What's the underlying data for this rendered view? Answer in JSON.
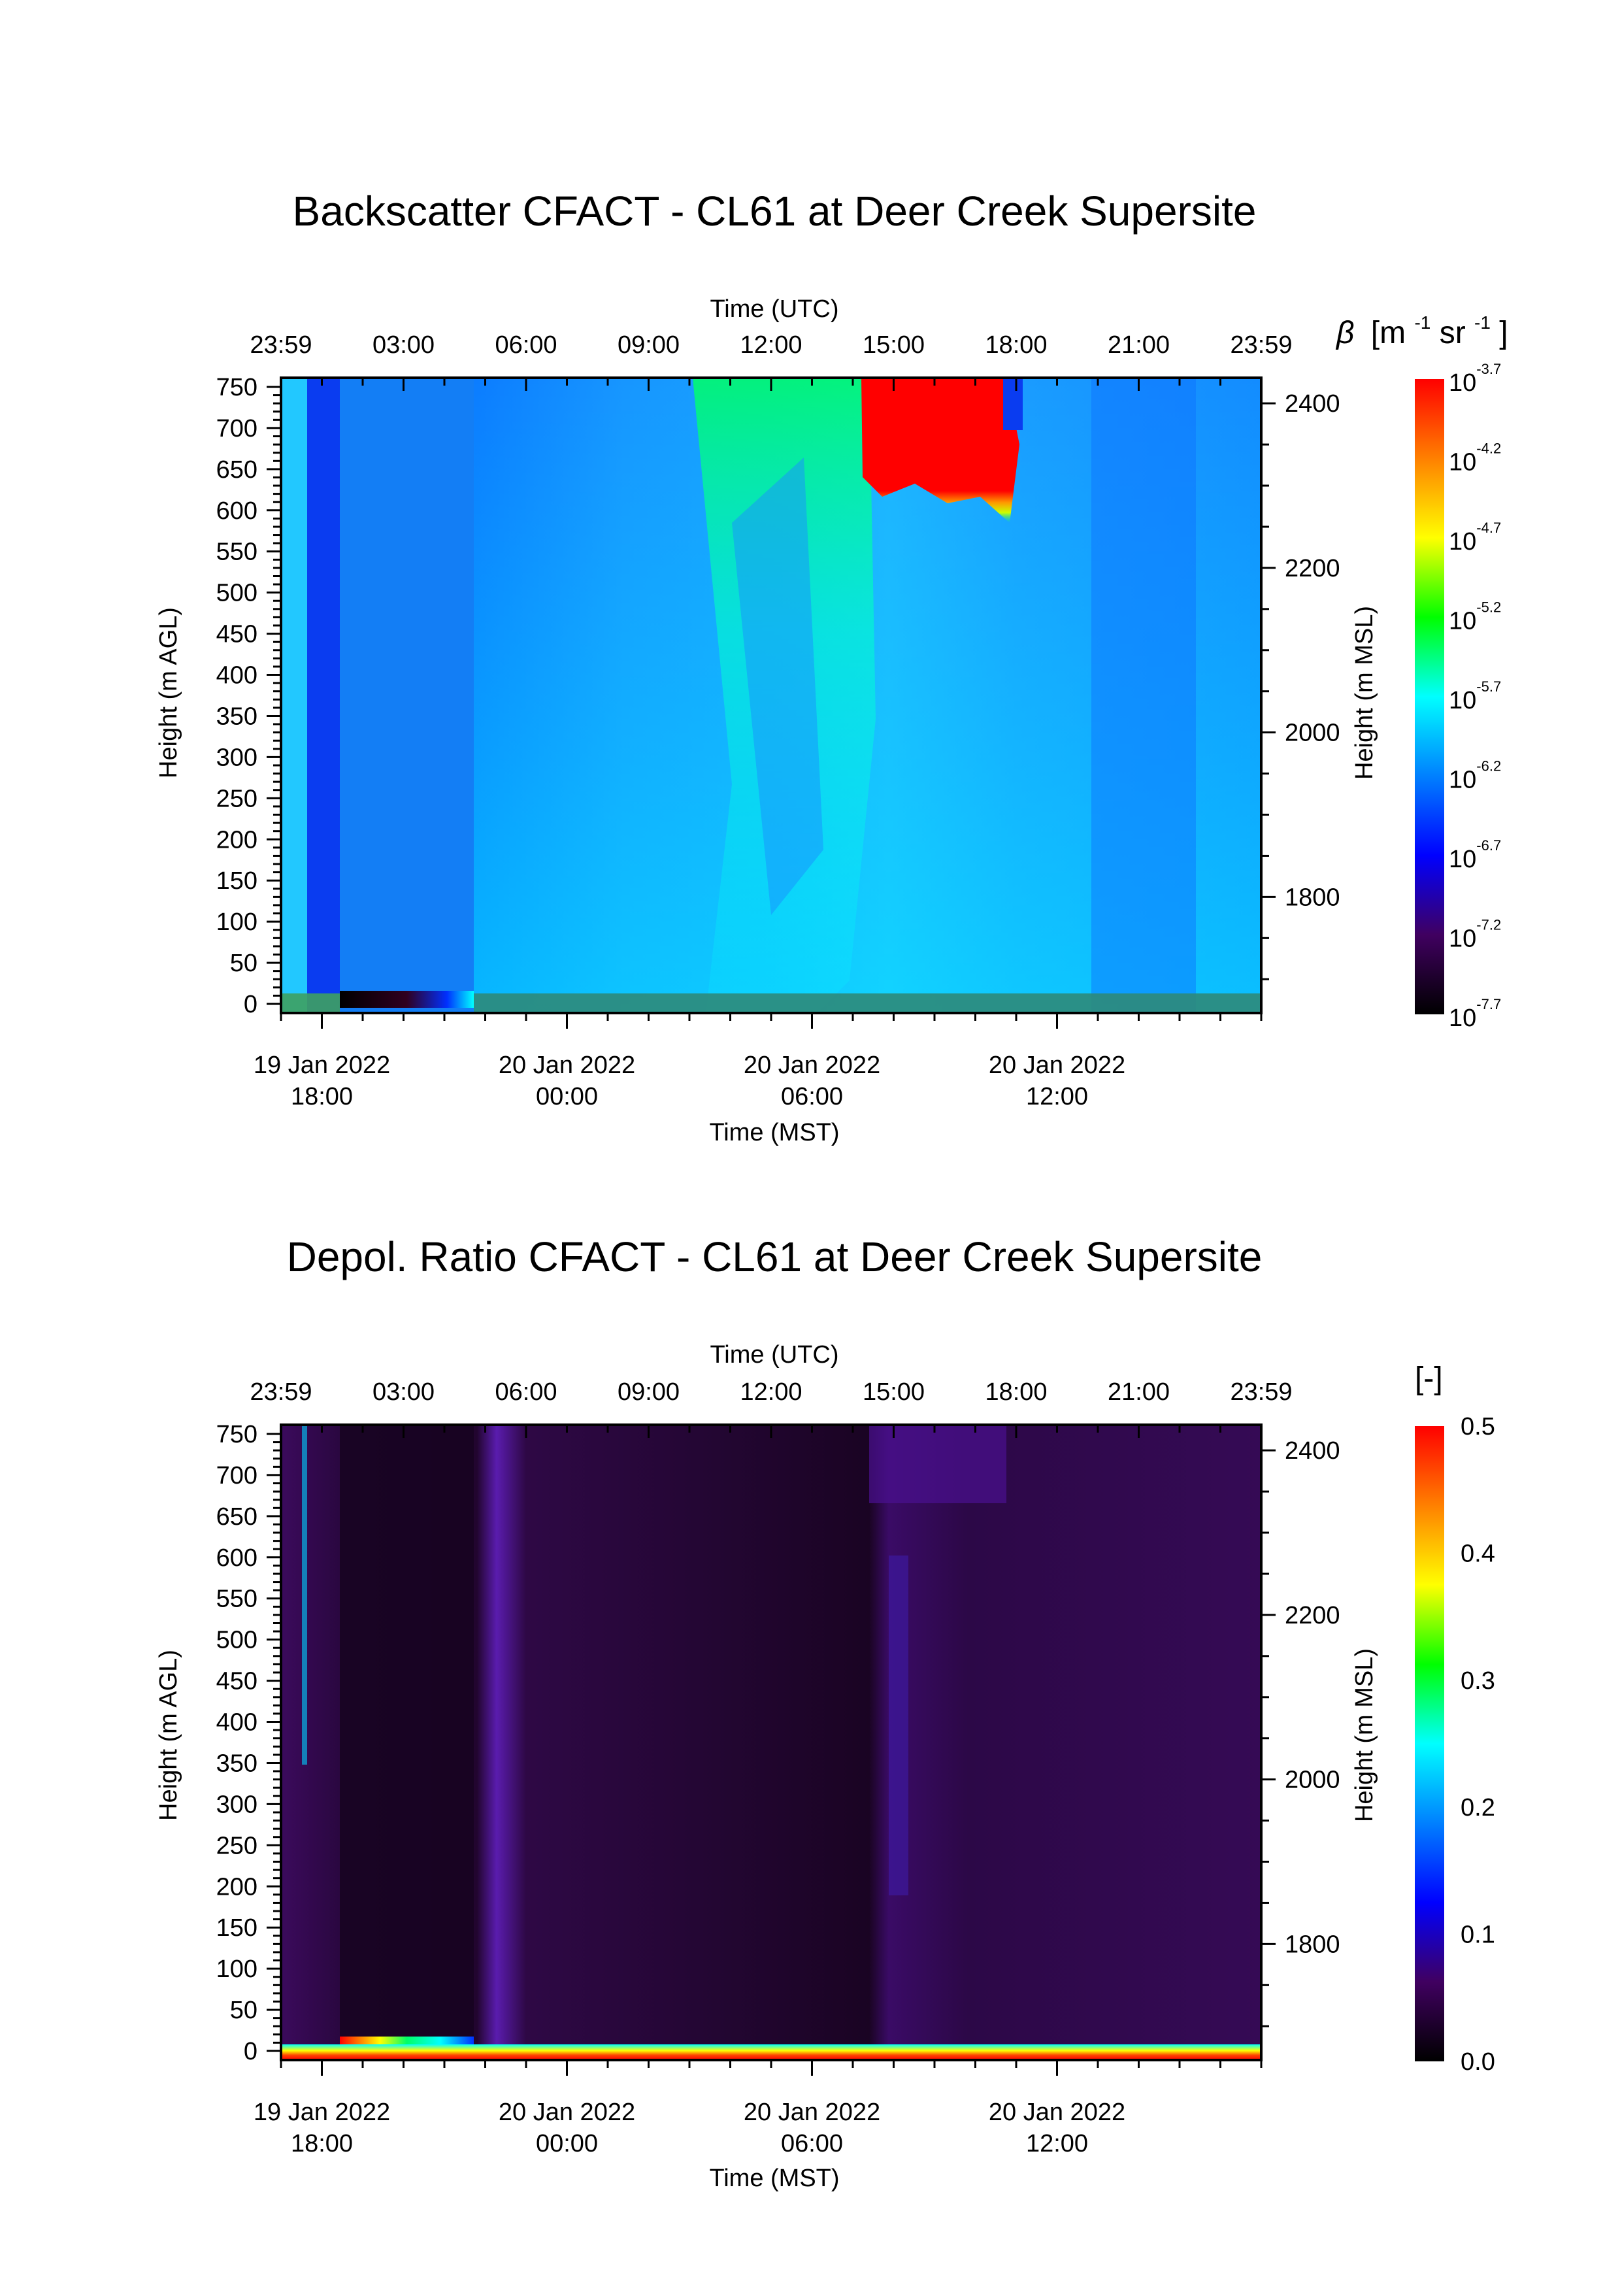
{
  "chart_data": [
    {
      "type": "heatmap",
      "title": "Backscatter CFACT - CL61 at Deer Creek Supersite",
      "top_axis": {
        "label": "Time (UTC)",
        "ticks": [
          "23:59",
          "03:00",
          "06:00",
          "09:00",
          "12:00",
          "15:00",
          "18:00",
          "21:00",
          "23:59"
        ]
      },
      "bottom_axis": {
        "label": "Time (MST)",
        "ticks": [
          {
            "date": "19 Jan 2022",
            "time": "18:00"
          },
          {
            "date": "20 Jan 2022",
            "time": "00:00"
          },
          {
            "date": "20 Jan 2022",
            "time": "06:00"
          },
          {
            "date": "20 Jan 2022",
            "time": "12:00"
          }
        ]
      },
      "left_axis": {
        "label": "Height (m AGL)",
        "ticks": [
          "0",
          "50",
          "100",
          "150",
          "200",
          "250",
          "300",
          "350",
          "400",
          "450",
          "500",
          "550",
          "600",
          "650",
          "700",
          "750"
        ],
        "range": [
          0,
          750
        ]
      },
      "right_axis": {
        "label": "Height (m MSL)",
        "ticks": [
          "1800",
          "2000",
          "2200",
          "2400"
        ]
      },
      "colorbar": {
        "label_symbol": "β",
        "label_unit_open": "[m",
        "label_unit_exp1": "-1",
        "label_unit_mid": " sr",
        "label_unit_exp2": "-1",
        "label_unit_close": "]",
        "scale": "log",
        "ticks": [
          {
            "base": "10",
            "exp": "-3.7"
          },
          {
            "base": "10",
            "exp": "-4.2"
          },
          {
            "base": "10",
            "exp": "-4.7"
          },
          {
            "base": "10",
            "exp": "-5.2"
          },
          {
            "base": "10",
            "exp": "-5.7"
          },
          {
            "base": "10",
            "exp": "-6.2"
          },
          {
            "base": "10",
            "exp": "-6.7"
          },
          {
            "base": "10",
            "exp": "-7.2"
          },
          {
            "base": "10",
            "exp": "-7.7"
          }
        ],
        "colormap": [
          "#ff0000",
          "#ff8000",
          "#ffff00",
          "#00ff00",
          "#00ffff",
          "#0080ff",
          "#0000ff",
          "#400060",
          "#000000"
        ]
      }
    },
    {
      "type": "heatmap",
      "title": "Depol. Ratio CFACT - CL61 at Deer Creek Supersite",
      "top_axis": {
        "label": "Time (UTC)",
        "ticks": [
          "23:59",
          "03:00",
          "06:00",
          "09:00",
          "12:00",
          "15:00",
          "18:00",
          "21:00",
          "23:59"
        ]
      },
      "bottom_axis": {
        "label": "Time (MST)",
        "ticks": [
          {
            "date": "19 Jan 2022",
            "time": "18:00"
          },
          {
            "date": "20 Jan 2022",
            "time": "00:00"
          },
          {
            "date": "20 Jan 2022",
            "time": "06:00"
          },
          {
            "date": "20 Jan 2022",
            "time": "12:00"
          }
        ]
      },
      "left_axis": {
        "label": "Height (m AGL)",
        "ticks": [
          "0",
          "50",
          "100",
          "150",
          "200",
          "250",
          "300",
          "350",
          "400",
          "450",
          "500",
          "550",
          "600",
          "650",
          "700",
          "750"
        ],
        "range": [
          0,
          750
        ]
      },
      "right_axis": {
        "label": "Height (m MSL)",
        "ticks": [
          "1800",
          "2000",
          "2200",
          "2400"
        ]
      },
      "colorbar": {
        "label": "[-]",
        "range": [
          0.0,
          0.5
        ],
        "ticks": [
          "0.5",
          "0.4",
          "0.3",
          "0.2",
          "0.1",
          "0.0"
        ],
        "colormap": [
          "#ff0000",
          "#ff8000",
          "#ffff00",
          "#00ff00",
          "#00ffff",
          "#0080ff",
          "#0000ff",
          "#400060",
          "#000000"
        ]
      }
    }
  ]
}
